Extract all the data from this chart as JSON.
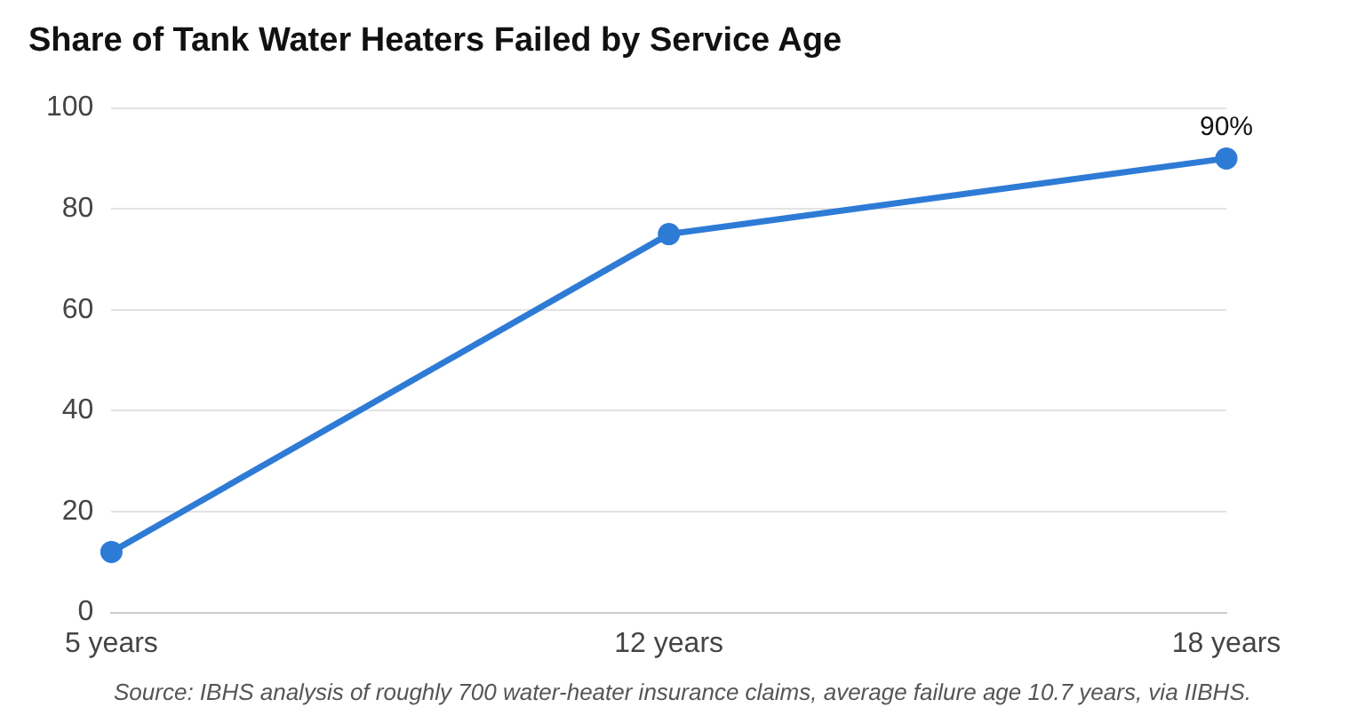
{
  "chart_data": {
    "type": "line",
    "title": "Share of Tank Water Heaters Failed by Service Age",
    "categories": [
      "5 years",
      "12 years",
      "18 years"
    ],
    "series": [
      {
        "color": "#2e7bd6",
        "values": [
          12,
          75,
          90
        ],
        "value_labels": [
          null,
          null,
          "90%"
        ]
      }
    ],
    "ylim": [
      0,
      100
    ],
    "yticks": [
      0,
      20,
      40,
      60,
      80,
      100
    ],
    "grid": "y",
    "legend": false,
    "marker": "circle",
    "line_style": "solid",
    "annotations": [
      "Source: IBHS analysis of roughly 700 water-heater insurance claims, average failure age 10.7 years, via IIBHS."
    ]
  }
}
